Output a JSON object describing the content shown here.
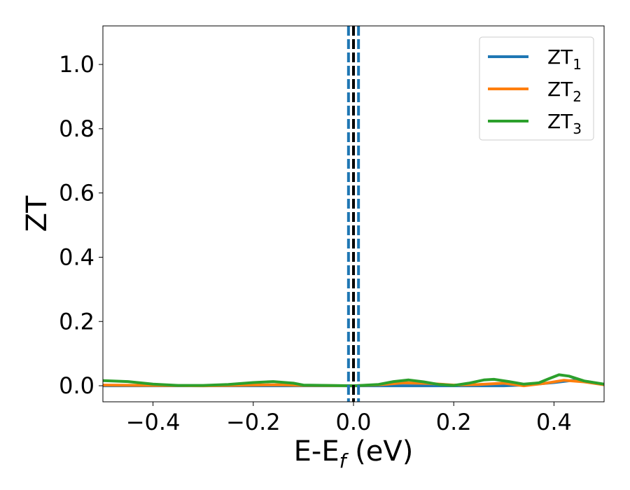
{
  "chart_data": {
    "type": "line",
    "title": "",
    "xlabel": {
      "base": "E-E",
      "sub": "f",
      "suffix": " (eV)"
    },
    "ylabel": "ZT",
    "xlim": [
      -0.5,
      0.5
    ],
    "ylim": [
      -0.05,
      1.12
    ],
    "xticks": [
      -0.4,
      -0.2,
      0.0,
      0.2,
      0.4
    ],
    "xtick_labels": [
      "−0.4",
      "−0.2",
      "0.0",
      "0.2",
      "0.4"
    ],
    "yticks": [
      0.0,
      0.2,
      0.4,
      0.6,
      0.8,
      1.0
    ],
    "ytick_labels": [
      "0.0",
      "0.2",
      "0.4",
      "0.6",
      "0.8",
      "1.0"
    ],
    "grid": false,
    "legend": "top-right",
    "series": [
      {
        "name": {
          "base": "ZT",
          "sub": "1"
        },
        "color": "#1f77b4",
        "x": [
          -0.5,
          -0.4,
          -0.3,
          -0.2,
          -0.1,
          0.0,
          0.05,
          0.1,
          0.15,
          0.2,
          0.25,
          0.3,
          0.35,
          0.4,
          0.44,
          0.47,
          0.5
        ],
        "y": [
          0.0,
          0.0,
          0.0,
          0.0,
          0.0,
          0.0,
          0.0,
          0.0,
          0.0,
          0.0,
          0.0,
          0.0,
          0.003,
          0.01,
          0.017,
          0.012,
          0.003
        ]
      },
      {
        "name": {
          "base": "ZT",
          "sub": "2"
        },
        "color": "#ff7f0e",
        "x": [
          -0.5,
          -0.4,
          -0.3,
          -0.2,
          -0.15,
          -0.1,
          0.0,
          0.05,
          0.1,
          0.15,
          0.2,
          0.25,
          0.3,
          0.34,
          0.38,
          0.42,
          0.46,
          0.5
        ],
        "y": [
          0.002,
          0.001,
          0.0,
          0.002,
          0.003,
          0.001,
          0.0,
          0.003,
          0.009,
          0.007,
          0.002,
          0.004,
          0.008,
          0.0,
          0.007,
          0.017,
          0.012,
          0.003
        ]
      },
      {
        "name": {
          "base": "ZT",
          "sub": "3"
        },
        "color": "#2ca02c",
        "x": [
          -0.5,
          -0.45,
          -0.4,
          -0.35,
          -0.3,
          -0.25,
          -0.2,
          -0.16,
          -0.12,
          -0.1,
          -0.05,
          0.0,
          0.05,
          0.08,
          0.11,
          0.14,
          0.17,
          0.2,
          0.23,
          0.26,
          0.28,
          0.31,
          0.34,
          0.37,
          0.39,
          0.41,
          0.43,
          0.46,
          0.5
        ],
        "y": [
          0.016,
          0.013,
          0.005,
          0.001,
          0.001,
          0.004,
          0.01,
          0.013,
          0.008,
          0.002,
          0.001,
          0.0,
          0.004,
          0.013,
          0.018,
          0.012,
          0.004,
          0.001,
          0.008,
          0.018,
          0.02,
          0.013,
          0.005,
          0.009,
          0.022,
          0.034,
          0.03,
          0.015,
          0.005
        ]
      }
    ],
    "vlines": [
      {
        "x": 0.0,
        "color": "#000000",
        "style": "dashed"
      },
      {
        "x": -0.01,
        "color": "#1f77b4",
        "style": "dashed"
      },
      {
        "x": 0.01,
        "color": "#1f77b4",
        "style": "dashed"
      }
    ]
  }
}
